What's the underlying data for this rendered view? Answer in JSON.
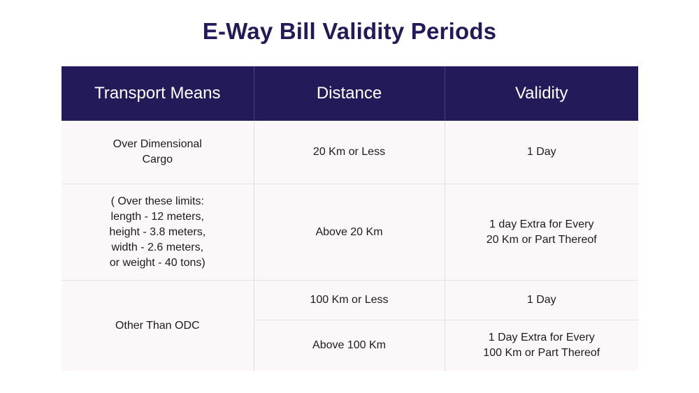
{
  "title": "E-Way Bill Validity Periods",
  "table": {
    "headers": [
      "Transport Means",
      "Distance",
      "Validity"
    ],
    "rows": [
      {
        "transport": "Over Dimensional\nCargo",
        "distance": "20 Km or Less",
        "validity": "1 Day"
      },
      {
        "transport": "( Over these limits:\nlength - 12 meters,\nheight - 3.8 meters,\nwidth - 2.6 meters,\nor weight - 40 tons)",
        "distance": "Above 20 Km",
        "validity": "1 day Extra for Every\n20 Km or Part Thereof"
      },
      {
        "transport": "Other Than ODC",
        "distance": "100 Km or Less",
        "validity": "1 Day"
      },
      {
        "distance": "Above 100 Km",
        "validity": "1 Day Extra for Every\n100 Km or Part Thereof"
      }
    ]
  },
  "colors": {
    "header_bg": "#231a5a",
    "title": "#231a5a",
    "row_bg": "#fcf7f8"
  }
}
